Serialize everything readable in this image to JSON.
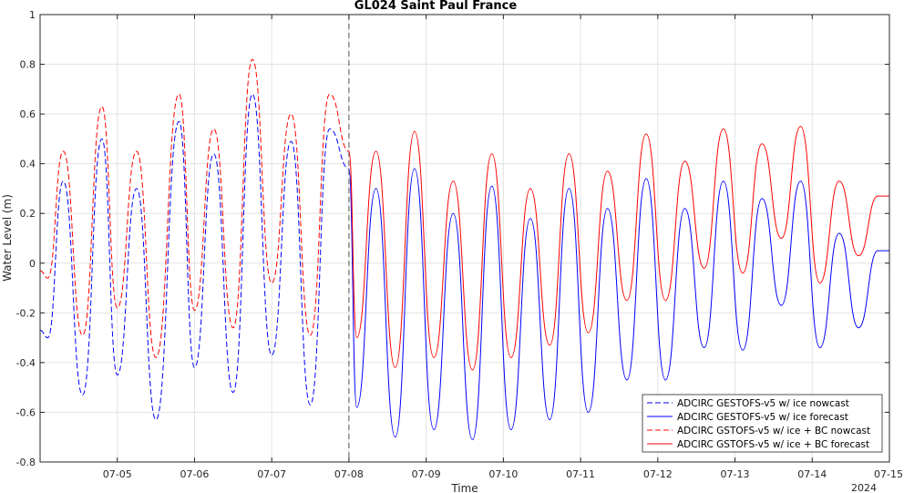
{
  "chart_data": {
    "type": "line",
    "title": "GL024 Saint Paul France",
    "xlabel": "Time",
    "ylabel": "Water Level (m)",
    "year_label": "2024",
    "ylim": [
      -0.8,
      1.0
    ],
    "yticks": [
      -0.8,
      -0.6,
      -0.4,
      -0.2,
      0,
      0.2,
      0.4,
      0.6,
      0.8,
      1
    ],
    "ytick_labels": [
      "-0.8",
      "-0.6",
      "-0.4",
      "-0.2",
      "0",
      "0.2",
      "0.4",
      "0.6",
      "0.8",
      "1"
    ],
    "xlim": [
      "2024-07-04T00:00",
      "2024-07-15T00:00"
    ],
    "xtick_labels": [
      "07-05",
      "07-06",
      "07-07",
      "07-08",
      "07-09",
      "07-10",
      "07-11",
      "07-12",
      "07-13",
      "07-14",
      "07-15"
    ],
    "xticks": [
      "2024-07-05",
      "2024-07-06",
      "2024-07-07",
      "2024-07-08",
      "2024-07-09",
      "2024-07-10",
      "2024-07-11",
      "2024-07-12",
      "2024-07-13",
      "2024-07-14",
      "2024-07-15"
    ],
    "grid": true,
    "legend_position": "bottom-right",
    "nowcast_forecast_split": "2024-07-08T00:00",
    "series": [
      {
        "name": "ADCIRC GESTOFS-v5 w/ ice nowcast",
        "color": "#0000ff",
        "style": "dashed",
        "x": [
          "2024-07-04T00:00",
          "2024-07-04T02:24",
          "2024-07-04T07:12",
          "2024-07-04T13:12",
          "2024-07-04T19:12",
          "2024-07-05T00:00",
          "2024-07-05T06:00",
          "2024-07-05T12:00",
          "2024-07-05T19:12",
          "2024-07-06T00:00",
          "2024-07-06T06:00",
          "2024-07-06T12:00",
          "2024-07-06T18:00",
          "2024-07-07T00:00",
          "2024-07-07T06:00",
          "2024-07-07T12:00",
          "2024-07-07T18:00",
          "2024-07-08T00:00"
        ],
        "y": [
          -0.27,
          -0.3,
          0.33,
          -0.53,
          0.5,
          -0.45,
          0.3,
          -0.63,
          0.57,
          -0.42,
          0.44,
          -0.52,
          0.68,
          -0.37,
          0.49,
          -0.57,
          0.54,
          0.38
        ]
      },
      {
        "name": "ADCIRC GESTOFS-v5 w/ ice forecast",
        "color": "#0000ff",
        "style": "solid",
        "x": [
          "2024-07-08T00:00",
          "2024-07-08T02:24",
          "2024-07-08T08:24",
          "2024-07-08T14:24",
          "2024-07-08T20:24",
          "2024-07-09T02:24",
          "2024-07-09T08:24",
          "2024-07-09T14:24",
          "2024-07-09T20:24",
          "2024-07-10T02:24",
          "2024-07-10T08:24",
          "2024-07-10T14:24",
          "2024-07-10T20:24",
          "2024-07-11T02:24",
          "2024-07-11T08:24",
          "2024-07-11T14:24",
          "2024-07-11T20:24",
          "2024-07-12T02:24",
          "2024-07-12T08:24",
          "2024-07-12T14:24",
          "2024-07-12T20:24",
          "2024-07-13T02:24",
          "2024-07-13T08:24",
          "2024-07-13T14:24",
          "2024-07-13T20:24",
          "2024-07-14T02:24",
          "2024-07-14T08:24",
          "2024-07-14T14:24",
          "2024-07-14T20:24",
          "2024-07-15T00:00"
        ],
        "y": [
          0.38,
          -0.58,
          0.3,
          -0.7,
          0.38,
          -0.67,
          0.2,
          -0.71,
          0.31,
          -0.67,
          0.18,
          -0.63,
          0.3,
          -0.6,
          0.22,
          -0.47,
          0.34,
          -0.47,
          0.22,
          -0.34,
          0.33,
          -0.35,
          0.26,
          -0.17,
          0.33,
          -0.34,
          0.12,
          -0.26,
          0.05,
          0.05
        ]
      },
      {
        "name": "ADCIRC GSTOFS-v5 w/ ice + BC nowcast",
        "color": "#ff0000",
        "style": "dashed",
        "x": [
          "2024-07-04T00:00",
          "2024-07-04T02:24",
          "2024-07-04T07:12",
          "2024-07-04T13:12",
          "2024-07-04T19:12",
          "2024-07-05T00:00",
          "2024-07-05T06:00",
          "2024-07-05T12:00",
          "2024-07-05T19:12",
          "2024-07-06T00:00",
          "2024-07-06T06:00",
          "2024-07-06T12:00",
          "2024-07-06T18:00",
          "2024-07-07T00:00",
          "2024-07-07T06:00",
          "2024-07-07T12:00",
          "2024-07-07T18:00",
          "2024-07-08T00:00"
        ],
        "y": [
          -0.03,
          -0.06,
          0.45,
          -0.29,
          0.63,
          -0.18,
          0.45,
          -0.38,
          0.68,
          -0.19,
          0.54,
          -0.26,
          0.82,
          -0.08,
          0.6,
          -0.29,
          0.68,
          0.45
        ]
      },
      {
        "name": "ADCIRC GSTOFS-v5 w/ ice + BC forecast",
        "color": "#ff0000",
        "style": "solid",
        "x": [
          "2024-07-08T00:00",
          "2024-07-08T02:24",
          "2024-07-08T08:24",
          "2024-07-08T14:24",
          "2024-07-08T20:24",
          "2024-07-09T02:24",
          "2024-07-09T08:24",
          "2024-07-09T14:24",
          "2024-07-09T20:24",
          "2024-07-10T02:24",
          "2024-07-10T08:24",
          "2024-07-10T14:24",
          "2024-07-10T20:24",
          "2024-07-11T02:24",
          "2024-07-11T08:24",
          "2024-07-11T14:24",
          "2024-07-11T20:24",
          "2024-07-12T02:24",
          "2024-07-12T08:24",
          "2024-07-12T14:24",
          "2024-07-12T20:24",
          "2024-07-13T02:24",
          "2024-07-13T08:24",
          "2024-07-13T14:24",
          "2024-07-13T20:24",
          "2024-07-14T02:24",
          "2024-07-14T08:24",
          "2024-07-14T14:24",
          "2024-07-14T20:24",
          "2024-07-15T00:00"
        ],
        "y": [
          0.45,
          -0.3,
          0.45,
          -0.42,
          0.53,
          -0.38,
          0.33,
          -0.43,
          0.44,
          -0.38,
          0.3,
          -0.33,
          0.44,
          -0.28,
          0.37,
          -0.15,
          0.52,
          -0.15,
          0.41,
          -0.02,
          0.54,
          -0.04,
          0.48,
          0.1,
          0.55,
          -0.08,
          0.33,
          0.03,
          0.27,
          0.27
        ]
      }
    ]
  }
}
